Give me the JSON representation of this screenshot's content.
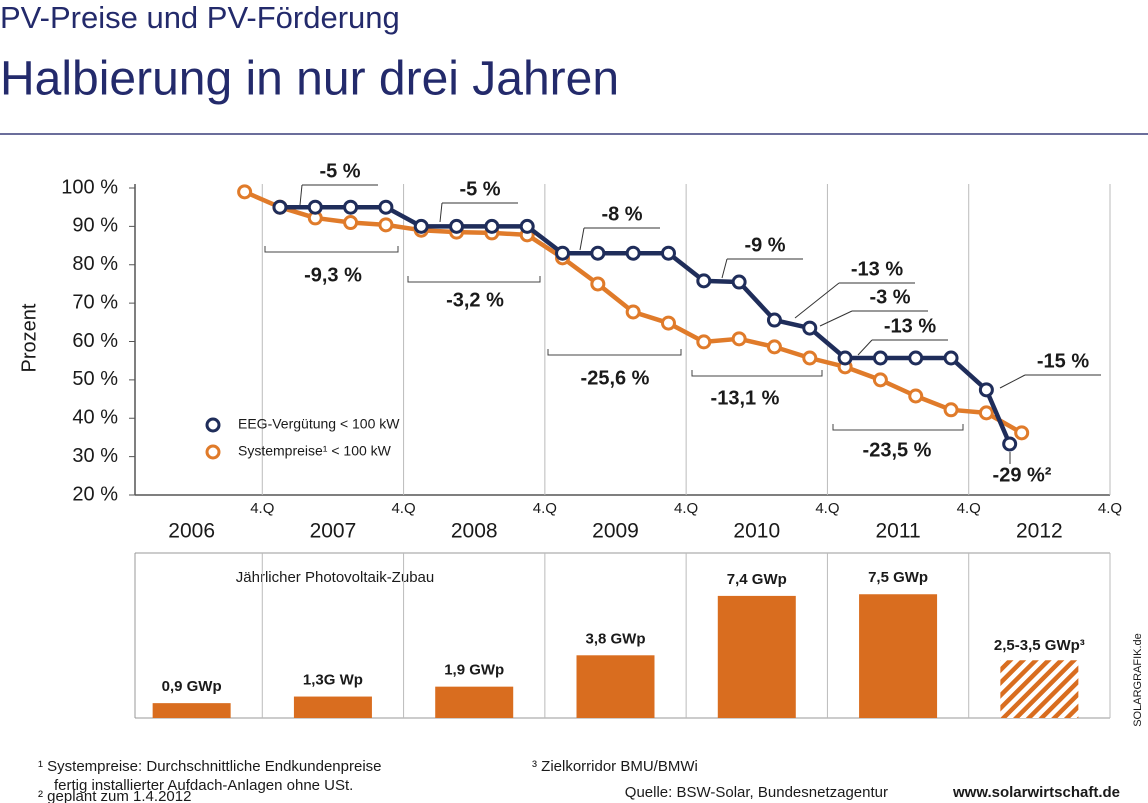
{
  "header": {
    "title": "PV-Preise und PV-Förderung",
    "subtitle": "Halbierung in nur drei Jahren"
  },
  "chart_data": [
    {
      "type": "line",
      "y_label": "Prozent",
      "xlim": [
        2006,
        2013
      ],
      "ylim": [
        20,
        100
      ],
      "xticks": [
        {
          "value": 2007,
          "label": "4.Q"
        },
        {
          "value": 2008,
          "label": "4.Q"
        },
        {
          "value": 2009,
          "label": "4.Q"
        },
        {
          "value": 2010,
          "label": "4.Q"
        },
        {
          "value": 2011,
          "label": "4.Q"
        },
        {
          "value": 2012,
          "label": "4.Q"
        },
        {
          "value": 2013,
          "label": "4.Q"
        }
      ],
      "yticks": [
        {
          "value": 20,
          "label": "20 %"
        },
        {
          "value": 30,
          "label": "30 %"
        },
        {
          "value": 40,
          "label": "40 %"
        },
        {
          "value": 50,
          "label": "50 %"
        },
        {
          "value": 60,
          "label": "60 %"
        },
        {
          "value": 70,
          "label": "70 %"
        },
        {
          "value": 80,
          "label": "80 %"
        },
        {
          "value": 90,
          "label": "90 %"
        },
        {
          "value": 100,
          "label": "100 %"
        }
      ],
      "year_labels": [
        "2006",
        "2007",
        "2008",
        "2009",
        "2010",
        "2011",
        "2012"
      ],
      "series": [
        {
          "name": "EEG-Vergütung < 100 kW",
          "color": "#1f2d5a",
          "x": [
            2007.125,
            2007.375,
            2007.625,
            2007.875,
            2008.125,
            2008.375,
            2008.625,
            2008.875,
            2009.125,
            2009.375,
            2009.625,
            2009.875,
            2010.125,
            2010.375,
            2010.625,
            2010.875,
            2011.125,
            2011.375,
            2011.625,
            2011.875,
            2012.125,
            2012.29
          ],
          "values": [
            95,
            95,
            95,
            95,
            90,
            90,
            90,
            90,
            83,
            83,
            83,
            83,
            75.8,
            75.5,
            65.6,
            63.5,
            55.7,
            55.7,
            55.7,
            55.7,
            47.4,
            33.3
          ]
        },
        {
          "name": "Systempreise¹ < 100 kW",
          "color": "#e07b2a",
          "x": [
            2006.875,
            2007.125,
            2007.375,
            2007.625,
            2007.875,
            2008.125,
            2008.375,
            2008.625,
            2008.875,
            2009.125,
            2009.375,
            2009.625,
            2009.875,
            2010.125,
            2010.375,
            2010.625,
            2010.875,
            2011.125,
            2011.375,
            2011.625,
            2011.875,
            2012.125,
            2012.375
          ],
          "values": [
            99,
            95,
            92.2,
            91,
            90.4,
            89,
            88.5,
            88.3,
            87.8,
            81.8,
            75,
            67.7,
            64.8,
            59.9,
            60.7,
            58.6,
            55.7,
            53.4,
            50,
            45.8,
            42.2,
            41.4,
            36.2
          ]
        }
      ],
      "eeg_annotations": [
        "-5 %",
        "-5 %",
        "-8 %",
        "-9 %",
        "-13 %",
        "-3 %",
        "-13 %",
        "-15 %",
        "-29 %²"
      ],
      "system_annotations": [
        "-9,3 %",
        "-3,2 %",
        "-25,6 %",
        "-13,1 %",
        "-23,5 %"
      ]
    },
    {
      "type": "bar",
      "title": "Jährlicher Photovoltaik-Zubau",
      "color": "#d96d1f",
      "ylim": [
        0,
        10
      ],
      "values": [
        0.9,
        1.3,
        1.9,
        3.8,
        7.4,
        7.5
      ],
      "value_labels": [
        "0,9 GWp",
        "1,3G Wp",
        "1,9 GWp",
        "3,8 GWp",
        "7,4 GWp",
        "7,5 GWp"
      ],
      "forecast": {
        "low": 2.5,
        "high": 3.5,
        "label": "2,5-3,5 GWp³"
      }
    }
  ],
  "footnotes": [
    "¹ Systempreise: Durchschnittliche Endkundenpreise",
    "fertig installierter Aufdach-Anlagen ohne USt.",
    "² geplant zum 1.4.2012",
    "³ Zielkorridor BMU/BMWi"
  ],
  "source": "Quelle: BSW-Solar, Bundesnetzagentur",
  "website": "www.solarwirtschaft.de",
  "credit": "SOLARGRAFIK.de"
}
